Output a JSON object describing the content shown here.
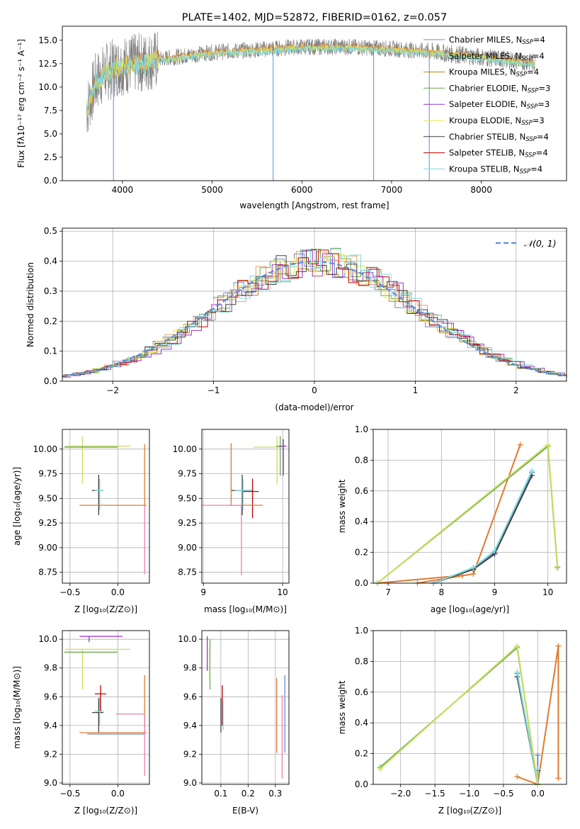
{
  "colors": {
    "Chabrier MILES": "#6b8ac7",
    "Salpeter MILES": "#e8a16b",
    "Kroupa MILES": "#b8860b",
    "Chabrier ELODIE": "#6aa84f",
    "Salpeter ELODIE": "#9b30c8",
    "Kroupa ELODIE": "#e8e84a",
    "Chabrier STELIB": "#404040",
    "Salpeter STELIB": "#c00000",
    "Kroupa STELIB": "#7fd8e0",
    "data": "#808080",
    "gauss": "#5b8fd6",
    "orange": "#e07a30",
    "lime": "#c8e060",
    "pink": "#e880b0"
  },
  "chart_data": [
    {
      "type": "line",
      "title": "PLATE=1402, MJD=52872, FIBERID=0162, z=0.057",
      "xlabel": "wavelength [Angstrom, rest frame]",
      "ylabel": "Flux [fλ10⁻¹⁷ erg cm⁻² s⁻¹ A⁻¹]",
      "xlim": [
        3330,
        8950
      ],
      "ylim": [
        0,
        16.5
      ],
      "xticks": [
        4000,
        5000,
        6000,
        7000,
        8000
      ],
      "yticks": [
        0.0,
        2.5,
        5.0,
        7.5,
        10.0,
        12.5,
        15.0
      ],
      "grid": false,
      "legend_position": "right",
      "legend": [
        {
          "label": "Chabrier MILES, N",
          "sub": "SSP",
          "tail": "=4"
        },
        {
          "label": "Salpeter MILES, N",
          "sub": "SSP",
          "tail": "=4"
        },
        {
          "label": "Kroupa MILES, N",
          "sub": "SSP",
          "tail": "=4"
        },
        {
          "label": "Chabrier ELODIE, N",
          "sub": "SSP",
          "tail": "=3"
        },
        {
          "label": "Salpeter ELODIE, N",
          "sub": "SSP",
          "tail": "=3"
        },
        {
          "label": "Kroupa ELODIE, N",
          "sub": "SSP",
          "tail": "=3"
        },
        {
          "label": "Chabrier STELIB, N",
          "sub": "SSP",
          "tail": "=4"
        },
        {
          "label": "Salpeter STELIB, N",
          "sub": "SSP",
          "tail": "=4"
        },
        {
          "label": "Kroupa STELIB, N",
          "sub": "SSP",
          "tail": "=4"
        }
      ],
      "continuum": [
        [
          3600,
          7.5
        ],
        [
          3700,
          10.5
        ],
        [
          3800,
          11.5
        ],
        [
          3900,
          12.0
        ],
        [
          4000,
          12.3
        ],
        [
          4200,
          12.6
        ],
        [
          4500,
          13.1
        ],
        [
          5000,
          13.7
        ],
        [
          5500,
          14.0
        ],
        [
          6000,
          14.3
        ],
        [
          6500,
          14.3
        ],
        [
          7000,
          14.1
        ],
        [
          7400,
          13.8
        ],
        [
          8000,
          13.2
        ],
        [
          8600,
          12.6
        ]
      ]
    },
    {
      "type": "line",
      "xlabel": "(data-model)/error",
      "ylabel": "Normed distribution",
      "xlim": [
        -2.5,
        2.5
      ],
      "ylim": [
        0,
        0.51
      ],
      "xticks": [
        -2,
        -1,
        0,
        1,
        2
      ],
      "yticks": [
        0.0,
        0.1,
        0.2,
        0.3,
        0.4,
        0.5
      ],
      "grid": true,
      "legend": "𝒩(0, 1)",
      "gaussian": {
        "mean": 0,
        "sigma": 1
      }
    },
    {
      "type": "scatter",
      "xlabel": "Z [log₁₀(Z/Z⊙)]",
      "ylabel": "age  [log₁₀(age/yr)]",
      "xlim": [
        -0.58,
        0.33
      ],
      "ylim": [
        8.64,
        10.2
      ],
      "xticks": [
        -0.5,
        0.0
      ],
      "yticks": [
        8.75,
        9.0,
        9.25,
        9.5,
        9.75,
        10.0
      ],
      "points": [
        {
          "x": -0.2,
          "y": 9.58,
          "xerr": [
            0.07,
            0.05
          ],
          "yerr": [
            0.25,
            0.16
          ],
          "color": "#404040"
        },
        {
          "x": -0.19,
          "y": 9.58,
          "xerr": [
            0.05,
            0.04
          ],
          "yerr": [
            0.2,
            0.12
          ],
          "color": "#7fd8e0"
        },
        {
          "x": -0.18,
          "y": 9.43,
          "xerr": [
            0.22,
            0.48
          ],
          "yerr": [
            0.0,
            0.0
          ],
          "color": "#e07a30"
        },
        {
          "x": 0.28,
          "y": 9.43,
          "xerr": [
            0.0,
            0.0
          ],
          "yerr": [
            0.0,
            0.62
          ],
          "color": "#e07a30"
        },
        {
          "x": 0.28,
          "y": 9.43,
          "xerr": [
            0.0,
            0.0
          ],
          "yerr": [
            0.7,
            0.0
          ],
          "color": "#e880b0"
        },
        {
          "x": -0.37,
          "y": 10.03,
          "xerr": [
            0.18,
            0.5
          ],
          "yerr": [
            0.38,
            0.1
          ],
          "color": "#c8e060"
        },
        {
          "x": -0.36,
          "y": 10.02,
          "xerr": [
            0.2,
            0.36
          ],
          "yerr": [
            0.0,
            0.0
          ],
          "color": "#6aa84f"
        }
      ]
    },
    {
      "type": "scatter",
      "xlabel": "mass [log₁₀(M/M⊙)]",
      "ylabel": "",
      "xlim": [
        8.98,
        10.08
      ],
      "ylim": [
        8.64,
        10.2
      ],
      "xticks": [
        9,
        10
      ],
      "yticks": [
        8.75,
        9.0,
        9.25,
        9.5,
        9.75,
        10.0
      ],
      "points": [
        {
          "x": 9.49,
          "y": 9.58,
          "xerr": [
            0.14,
            0.14
          ],
          "yerr": [
            0.25,
            0.16
          ],
          "color": "#404040"
        },
        {
          "x": 9.5,
          "y": 9.58,
          "xerr": [
            0.1,
            0.12
          ],
          "yerr": [
            0.2,
            0.12
          ],
          "color": "#7fd8e0"
        },
        {
          "x": 9.62,
          "y": 9.57,
          "xerr": [
            0.12,
            0.08
          ],
          "yerr": [
            0.27,
            0.13
          ],
          "color": "#c00000"
        },
        {
          "x": 9.35,
          "y": 9.43,
          "xerr": [
            0.05,
            0.4
          ],
          "yerr": [
            0.0,
            0.63
          ],
          "color": "#e07a30"
        },
        {
          "x": 9.48,
          "y": 9.43,
          "xerr": [
            0.55,
            0.0
          ],
          "yerr": [
            0.71,
            0.0
          ],
          "color": "#e880b0"
        },
        {
          "x": 9.93,
          "y": 10.02,
          "xerr": [
            0.3,
            0.05
          ],
          "yerr": [
            0.38,
            0.11
          ],
          "color": "#c8e060"
        },
        {
          "x": 9.97,
          "y": 10.03,
          "xerr": [
            0.05,
            0.04
          ],
          "yerr": [
            0.3,
            0.1
          ],
          "color": "#6aa84f"
        },
        {
          "x": 10.01,
          "y": 10.03,
          "xerr": [
            0.05,
            0.04
          ],
          "yerr": [
            0.3,
            0.07
          ],
          "color": "#9b30c8"
        }
      ]
    },
    {
      "type": "line",
      "xlabel": "age  [log₁₀(age/yr)]",
      "ylabel": "mass weight",
      "xlim": [
        6.72,
        10.35
      ],
      "ylim": [
        0,
        1
      ],
      "xticks": [
        7,
        8,
        9,
        10
      ],
      "yticks": [
        0.0,
        0.2,
        0.4,
        0.6,
        0.8,
        1.0
      ],
      "grid": true,
      "series": [
        {
          "color": "#e07a30",
          "x": [
            7.55,
            8.6,
            9.48
          ],
          "y": [
            0.0,
            0.06,
            0.9
          ]
        },
        {
          "color": "#e07a30",
          "x": [
            6.8,
            8.4
          ],
          "y": [
            0.0,
            0.05
          ]
        },
        {
          "color": "#6b8ac7",
          "x": [
            7.85,
            8.6,
            9.0,
            9.7
          ],
          "y": [
            0.0,
            0.1,
            0.2,
            0.72
          ]
        },
        {
          "color": "#404040",
          "x": [
            7.85,
            8.6,
            9.0,
            9.7
          ],
          "y": [
            0.0,
            0.09,
            0.19,
            0.7
          ]
        },
        {
          "color": "#7fd8e0",
          "x": [
            7.85,
            8.6,
            9.0,
            9.7
          ],
          "y": [
            0.0,
            0.1,
            0.21,
            0.73
          ]
        },
        {
          "color": "#6aa84f",
          "x": [
            6.8,
            10.0,
            10.18
          ],
          "y": [
            0.0,
            0.89,
            0.1
          ]
        },
        {
          "color": "#c8e060",
          "x": [
            6.8,
            10.0,
            10.18
          ],
          "y": [
            0.0,
            0.9,
            0.11
          ]
        }
      ]
    },
    {
      "type": "scatter",
      "xlabel": "Z [log₁₀(Z/Z⊙)]",
      "ylabel": "mass [log₁₀(M/M⊙)]",
      "xlim": [
        -0.58,
        0.33
      ],
      "ylim": [
        8.99,
        10.06
      ],
      "xticks": [
        -0.5,
        0.0
      ],
      "yticks": [
        9.0,
        9.2,
        9.4,
        9.6,
        9.8,
        10.0
      ],
      "points": [
        {
          "x": -0.2,
          "y": 9.49,
          "xerr": [
            0.07,
            0.05
          ],
          "yerr": [
            0.14,
            0.1
          ],
          "color": "#404040"
        },
        {
          "x": -0.19,
          "y": 9.5,
          "xerr": [
            0.05,
            0.04
          ],
          "yerr": [
            0.1,
            0.1
          ],
          "color": "#7fd8e0"
        },
        {
          "x": -0.18,
          "y": 9.62,
          "xerr": [
            0.06,
            0.06
          ],
          "yerr": [
            0.12,
            0.06
          ],
          "color": "#c00000"
        },
        {
          "x": -0.18,
          "y": 9.35,
          "xerr": [
            0.22,
            0.48
          ],
          "yerr": [
            0.0,
            0.0
          ],
          "color": "#e07a30"
        },
        {
          "x": 0.28,
          "y": 9.35,
          "xerr": [
            0.0,
            0.0
          ],
          "yerr": [
            0.0,
            0.4
          ],
          "color": "#e07a30"
        },
        {
          "x": -0.1,
          "y": 9.34,
          "xerr": [
            0.22,
            0.38
          ],
          "yerr": [
            0.0,
            0.0
          ],
          "color": "#6b8ac7"
        },
        {
          "x": 0.28,
          "y": 9.48,
          "xerr": [
            0.3,
            0.0
          ],
          "yerr": [
            0.43,
            0.0
          ],
          "color": "#e880b0"
        },
        {
          "x": -0.37,
          "y": 9.93,
          "xerr": [
            0.18,
            0.5
          ],
          "yerr": [
            0.28,
            0.0
          ],
          "color": "#c8e060"
        },
        {
          "x": -0.36,
          "y": 9.91,
          "xerr": [
            0.2,
            0.36
          ],
          "yerr": [
            0.0,
            0.0
          ],
          "color": "#6aa84f"
        },
        {
          "x": -0.3,
          "y": 10.02,
          "xerr": [
            0.1,
            0.35
          ],
          "yerr": [
            0.04,
            0.0
          ],
          "color": "#9b30c8"
        }
      ]
    },
    {
      "type": "scatter",
      "xlabel": "E(B-V)",
      "ylabel": "",
      "xlim": [
        0.03,
        0.35
      ],
      "ylim": [
        8.99,
        10.06
      ],
      "xticks": [
        0.1,
        0.2,
        0.3
      ],
      "yticks": [
        9.0,
        9.2,
        9.4,
        9.6,
        9.8,
        10.0
      ],
      "points": [
        {
          "x": 0.05,
          "y": 9.78,
          "xerr": [
            0,
            0
          ],
          "yerr": [
            0,
            0.24
          ],
          "color": "#9b30c8"
        },
        {
          "x": 0.06,
          "y": 9.65,
          "xerr": [
            0,
            0
          ],
          "yerr": [
            0,
            0.35
          ],
          "color": "#6aa84f"
        },
        {
          "x": 0.058,
          "y": 9.72,
          "xerr": [
            0,
            0
          ],
          "yerr": [
            0,
            0.22
          ],
          "color": "#c8e060"
        },
        {
          "x": 0.1,
          "y": 9.49,
          "xerr": [
            0,
            0
          ],
          "yerr": [
            0.14,
            0.1
          ],
          "color": "#404040"
        },
        {
          "x": 0.105,
          "y": 9.5,
          "xerr": [
            0,
            0
          ],
          "yerr": [
            0.1,
            0.18
          ],
          "color": "#c00000"
        },
        {
          "x": 0.108,
          "y": 9.47,
          "xerr": [
            0,
            0
          ],
          "yerr": [
            0.1,
            0.1
          ],
          "color": "#7fd8e0"
        },
        {
          "x": 0.305,
          "y": 9.47,
          "xerr": [
            0,
            0
          ],
          "yerr": [
            0.26,
            0.26
          ],
          "color": "#e07a30"
        },
        {
          "x": 0.325,
          "y": 9.37,
          "xerr": [
            0,
            0
          ],
          "yerr": [
            0.34,
            0.24
          ],
          "color": "#e880b0"
        },
        {
          "x": 0.335,
          "y": 9.48,
          "xerr": [
            0,
            0
          ],
          "yerr": [
            0.27,
            0.27
          ],
          "color": "#6b8ac7"
        }
      ]
    },
    {
      "type": "line",
      "xlabel": "Z [log₁₀(Z/Z⊙)]",
      "ylabel": "mass weight",
      "xlim": [
        -2.4,
        0.42
      ],
      "ylim": [
        0,
        1
      ],
      "xticks": [
        -2.0,
        -1.5,
        -1.0,
        -0.5,
        0.0
      ],
      "yticks": [
        0.0,
        0.2,
        0.4,
        0.6,
        0.8,
        1.0
      ],
      "grid": true,
      "series": [
        {
          "color": "#e07a30",
          "x": [
            -0.3,
            0.0,
            0.3,
            0.3
          ],
          "y": [
            0.05,
            0.0,
            0.9,
            0.04
          ]
        },
        {
          "color": "#6b8ac7",
          "x": [
            -0.3,
            0.0,
            0.0
          ],
          "y": [
            0.72,
            0.0,
            0.19
          ]
        },
        {
          "color": "#404040",
          "x": [
            -0.3,
            0.0,
            0.0
          ],
          "y": [
            0.7,
            0.0,
            0.09
          ]
        },
        {
          "color": "#7fd8e0",
          "x": [
            -0.3,
            0.0,
            0.0
          ],
          "y": [
            0.73,
            0.0,
            0.1
          ]
        },
        {
          "color": "#6aa84f",
          "x": [
            -2.3,
            -0.3,
            0.0
          ],
          "y": [
            0.11,
            0.89,
            0.0
          ]
        },
        {
          "color": "#c8e060",
          "x": [
            -2.3,
            -0.3,
            0.0
          ],
          "y": [
            0.1,
            0.9,
            0.0
          ]
        }
      ]
    }
  ]
}
